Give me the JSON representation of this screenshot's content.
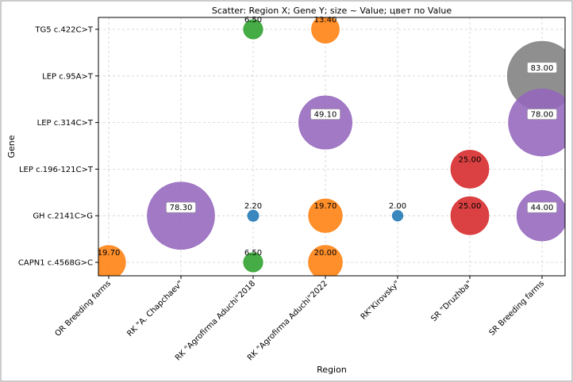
{
  "chart_data": {
    "type": "scatter",
    "title": "Scatter: Region X; Gene Y; size ~ Value; цвет по Value",
    "xlabel": "Region",
    "ylabel": "Gene",
    "x_categories": [
      "OR Breeding farms",
      "RK \"A. Chapchaev\"",
      "RK \"Agrofirma Aduchi\"2018",
      "RK \"Agrofirma Aduchi\"2022",
      "RK\"Kirovsky\"",
      "SR \"Druzhba\"",
      "SR Breeding farms"
    ],
    "y_categories": [
      "CAPN1 c.4568G>C",
      "GH c.2141C>G",
      "LEP c.196-121C>T",
      "LEP c.314C>T",
      "LEP c.95A>T",
      "TG5 c.422C>T"
    ],
    "grid": true,
    "points": [
      {
        "x": "OR Breeding farms",
        "y": "CAPN1 c.4568G>C",
        "value": 19.7,
        "label": "19.70",
        "color": "#ff7f0e"
      },
      {
        "x": "RK \"A. Chapchaev\"",
        "y": "GH c.2141C>G",
        "value": 78.3,
        "label": "78.30",
        "color": "#9467bd"
      },
      {
        "x": "RK \"Agrofirma Aduchi\"2018",
        "y": "TG5 c.422C>T",
        "value": 6.5,
        "label": "6.50",
        "color": "#2ca02c"
      },
      {
        "x": "RK \"Agrofirma Aduchi\"2018",
        "y": "GH c.2141C>G",
        "value": 2.2,
        "label": "2.20",
        "color": "#1f77b4"
      },
      {
        "x": "RK \"Agrofirma Aduchi\"2018",
        "y": "CAPN1 c.4568G>C",
        "value": 6.5,
        "label": "6.50",
        "color": "#2ca02c"
      },
      {
        "x": "RK \"Agrofirma Aduchi\"2022",
        "y": "TG5 c.422C>T",
        "value": 13.4,
        "label": "13.40",
        "color": "#ff7f0e"
      },
      {
        "x": "RK \"Agrofirma Aduchi\"2022",
        "y": "LEP c.314C>T",
        "value": 49.1,
        "label": "49.10",
        "color": "#9467bd"
      },
      {
        "x": "RK \"Agrofirma Aduchi\"2022",
        "y": "GH c.2141C>G",
        "value": 19.7,
        "label": "19.70",
        "color": "#ff7f0e"
      },
      {
        "x": "RK \"Agrofirma Aduchi\"2022",
        "y": "CAPN1 c.4568G>C",
        "value": 20.0,
        "label": "20.00",
        "color": "#ff7f0e"
      },
      {
        "x": "RK\"Kirovsky\"",
        "y": "GH c.2141C>G",
        "value": 2.0,
        "label": "2.00",
        "color": "#1f77b4"
      },
      {
        "x": "SR \"Druzhba\"",
        "y": "LEP c.196-121C>T",
        "value": 25.0,
        "label": "25.00",
        "color": "#d62728"
      },
      {
        "x": "SR \"Druzhba\"",
        "y": "GH c.2141C>G",
        "value": 25.0,
        "label": "25.00",
        "color": "#d62728"
      },
      {
        "x": "SR Breeding farms",
        "y": "LEP c.95A>T",
        "value": 83.0,
        "label": "83.00",
        "color": "#7f7f7f"
      },
      {
        "x": "SR Breeding farms",
        "y": "LEP c.314C>T",
        "value": 78.0,
        "label": "78.00",
        "color": "#9467bd"
      },
      {
        "x": "SR Breeding farms",
        "y": "GH c.2141C>G",
        "value": 44.0,
        "label": "44.00",
        "color": "#9467bd"
      }
    ]
  }
}
